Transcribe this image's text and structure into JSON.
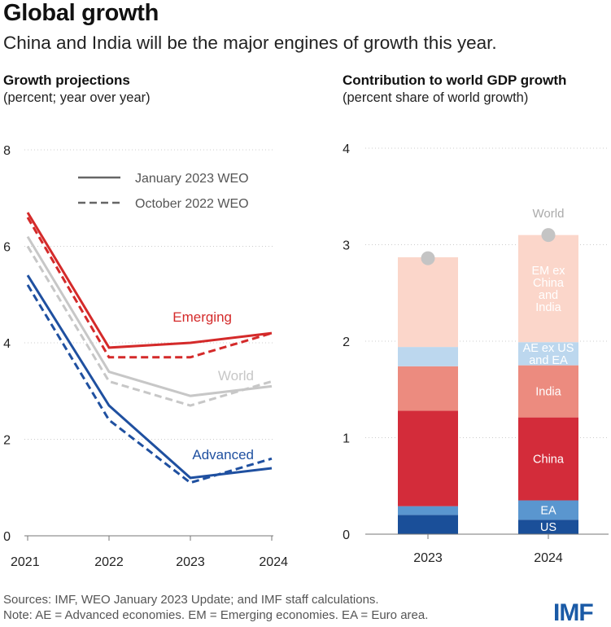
{
  "header": {
    "title": "Global growth",
    "subtitle": "China and India will be the major engines of growth this year."
  },
  "colors": {
    "emerging": "#d42a2a",
    "world": "#c7c7c7",
    "advanced": "#1f50a0",
    "axis": "#777777",
    "grid": "#cccccc",
    "dot": "#c4c4c4"
  },
  "chart_data": [
    {
      "type": "line",
      "title": "Growth projections",
      "subtitle": "(percent; year over year)",
      "x": [
        "2021",
        "2022",
        "2023",
        "2024"
      ],
      "ylim": [
        0,
        8
      ],
      "yticks": [
        0,
        2,
        4,
        6,
        8
      ],
      "legend": {
        "placement": "top-center",
        "solid_label": "January 2023 WEO",
        "dashed_label": "October 2022 WEO"
      },
      "series": [
        {
          "name": "Emerging",
          "key": "emerging",
          "style": "solid",
          "values": [
            6.7,
            3.9,
            4.0,
            4.2
          ]
        },
        {
          "name": "Emerging",
          "key": "emerging",
          "style": "dashed",
          "values": [
            6.6,
            3.7,
            3.7,
            4.2
          ]
        },
        {
          "name": "World",
          "key": "world",
          "style": "solid",
          "values": [
            6.2,
            3.4,
            2.9,
            3.1
          ]
        },
        {
          "name": "World",
          "key": "world",
          "style": "dashed",
          "values": [
            6.0,
            3.2,
            2.7,
            3.2
          ]
        },
        {
          "name": "Advanced",
          "key": "advanced",
          "style": "solid",
          "values": [
            5.4,
            2.7,
            1.2,
            1.4
          ]
        },
        {
          "name": "Advanced",
          "key": "advanced",
          "style": "dashed",
          "values": [
            5.2,
            2.4,
            1.1,
            1.6
          ]
        }
      ],
      "series_labels": [
        {
          "text": "Emerging",
          "key": "emerging"
        },
        {
          "text": "World",
          "key": "world"
        },
        {
          "text": "Advanced",
          "key": "advanced"
        }
      ]
    },
    {
      "type": "bar",
      "stacked": true,
      "title": "Contribution to world GDP growth",
      "subtitle": "(percent share of world growth)",
      "categories": [
        "2023",
        "2024"
      ],
      "ylim": [
        0,
        4
      ],
      "yticks": [
        0,
        1,
        2,
        3,
        4
      ],
      "segments": [
        {
          "name": "US",
          "color": "#1a4f99",
          "values": [
            0.2,
            0.15
          ],
          "label_color": "#ffffff"
        },
        {
          "name": "EA",
          "color": "#5a96cf",
          "values": [
            0.09,
            0.2
          ],
          "label_color": "#ffffff"
        },
        {
          "name": "China",
          "color": "#d32c3a",
          "values": [
            0.99,
            0.86
          ],
          "label_color": "#ffffff"
        },
        {
          "name": "India",
          "color": "#ec8b7f",
          "values": [
            0.46,
            0.54
          ],
          "label_color": "#ffffff"
        },
        {
          "name": "AE ex US and EA",
          "color": "#bcd7ee",
          "values": [
            0.2,
            0.24
          ],
          "label_color": "#ffffff"
        },
        {
          "name": "EM ex China and India",
          "color": "#fbd6ca",
          "values": [
            0.93,
            1.11
          ],
          "label_color": "#ffffff"
        }
      ],
      "world_values": [
        2.86,
        3.1
      ],
      "world_label": "World",
      "segment_labels_2024": [
        {
          "lines": [
            "US"
          ],
          "segment": "US"
        },
        {
          "lines": [
            "EA"
          ],
          "segment": "EA"
        },
        {
          "lines": [
            "China"
          ],
          "segment": "China"
        },
        {
          "lines": [
            "India"
          ],
          "segment": "India"
        },
        {
          "lines": [
            "AE ex US",
            "and EA"
          ],
          "segment": "AE ex US and EA"
        },
        {
          "lines": [
            "EM ex",
            "China",
            "and",
            "India"
          ],
          "segment": "EM ex China and India"
        }
      ]
    }
  ],
  "footer": {
    "sources": "Sources: IMF, WEO January 2023 Update; and IMF staff calculations.",
    "note": "Note: AE = Advanced economies.  EM = Emerging economies. EA = Euro area."
  },
  "logo": "IMF"
}
